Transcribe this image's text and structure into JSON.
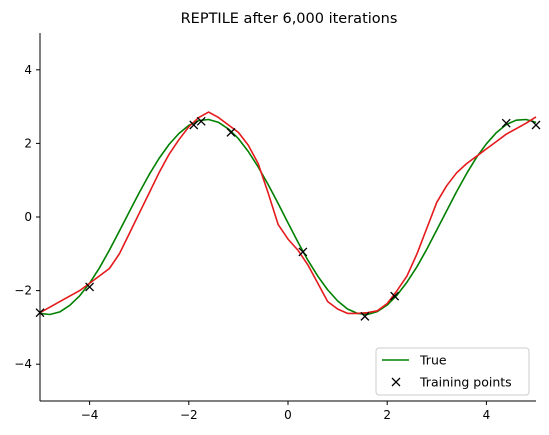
{
  "chart_data": {
    "type": "line",
    "title": "REPTILE after 6,000 iterations",
    "xlabel": "",
    "ylabel": "",
    "xlim": [
      -5,
      5
    ],
    "ylim": [
      -5,
      5
    ],
    "xticks": [
      -4,
      -2,
      0,
      2,
      4
    ],
    "yticks": [
      -4,
      -2,
      0,
      2,
      4
    ],
    "grid": false,
    "legend_position": "bottom-right",
    "series": [
      {
        "name": "True",
        "color": "#008000",
        "style": "line",
        "x": [
          -5.0,
          -4.8,
          -4.6,
          -4.4,
          -4.2,
          -4.0,
          -3.8,
          -3.6,
          -3.4,
          -3.2,
          -3.0,
          -2.8,
          -2.6,
          -2.4,
          -2.2,
          -2.0,
          -1.8,
          -1.6,
          -1.4,
          -1.2,
          -1.0,
          -0.8,
          -0.6,
          -0.4,
          -0.2,
          0.0,
          0.2,
          0.4,
          0.6,
          0.8,
          1.0,
          1.2,
          1.4,
          1.6,
          1.8,
          2.0,
          2.2,
          2.4,
          2.6,
          2.8,
          3.0,
          3.2,
          3.4,
          3.6,
          3.8,
          4.0,
          4.2,
          4.4,
          4.6,
          4.8,
          5.0
        ],
        "y": [
          -2.62,
          -2.65,
          -2.58,
          -2.4,
          -2.14,
          -1.8,
          -1.38,
          -0.9,
          -0.38,
          0.14,
          0.66,
          1.15,
          1.59,
          1.97,
          2.27,
          2.49,
          2.62,
          2.65,
          2.57,
          2.39,
          2.13,
          1.78,
          1.36,
          0.88,
          0.37,
          -0.16,
          -0.68,
          -1.17,
          -1.61,
          -1.98,
          -2.28,
          -2.5,
          -2.62,
          -2.65,
          -2.57,
          -2.39,
          -2.12,
          -1.77,
          -1.35,
          -0.87,
          -0.35,
          0.17,
          0.69,
          1.18,
          1.62,
          1.99,
          2.29,
          2.51,
          2.63,
          2.65,
          2.57
        ]
      },
      {
        "name": "",
        "color": "#e41a1c",
        "style": "line",
        "x": [
          -5.0,
          -4.6,
          -4.2,
          -3.8,
          -3.6,
          -3.4,
          -3.2,
          -3.0,
          -2.8,
          -2.6,
          -2.4,
          -2.2,
          -2.0,
          -1.8,
          -1.6,
          -1.4,
          -1.2,
          -1.0,
          -0.8,
          -0.6,
          -0.4,
          -0.2,
          0.0,
          0.2,
          0.4,
          0.6,
          0.8,
          1.0,
          1.2,
          1.4,
          1.6,
          1.8,
          2.0,
          2.2,
          2.4,
          2.6,
          2.8,
          3.0,
          3.2,
          3.4,
          3.6,
          3.8,
          4.0,
          4.2,
          4.4,
          4.6,
          4.8,
          5.0
        ],
        "y": [
          -2.6,
          -2.3,
          -2.0,
          -1.6,
          -1.4,
          -1.0,
          -0.45,
          0.1,
          0.65,
          1.2,
          1.7,
          2.1,
          2.45,
          2.7,
          2.85,
          2.7,
          2.5,
          2.3,
          1.95,
          1.45,
          0.65,
          -0.2,
          -0.6,
          -0.9,
          -1.3,
          -1.8,
          -2.3,
          -2.5,
          -2.62,
          -2.62,
          -2.6,
          -2.55,
          -2.35,
          -2.0,
          -1.6,
          -1.0,
          -0.3,
          0.4,
          0.85,
          1.2,
          1.45,
          1.65,
          1.85,
          2.05,
          2.25,
          2.4,
          2.55,
          2.72
        ]
      },
      {
        "name": "Training points",
        "color": "#000000",
        "style": "markers",
        "marker": "x",
        "x": [
          -5.0,
          -4.0,
          -1.9,
          -1.75,
          -1.15,
          0.3,
          1.55,
          2.15,
          4.4,
          5.0
        ],
        "y": [
          -2.6,
          -1.9,
          2.5,
          2.6,
          2.3,
          -0.95,
          -2.7,
          -2.15,
          2.55,
          2.5
        ]
      }
    ]
  }
}
